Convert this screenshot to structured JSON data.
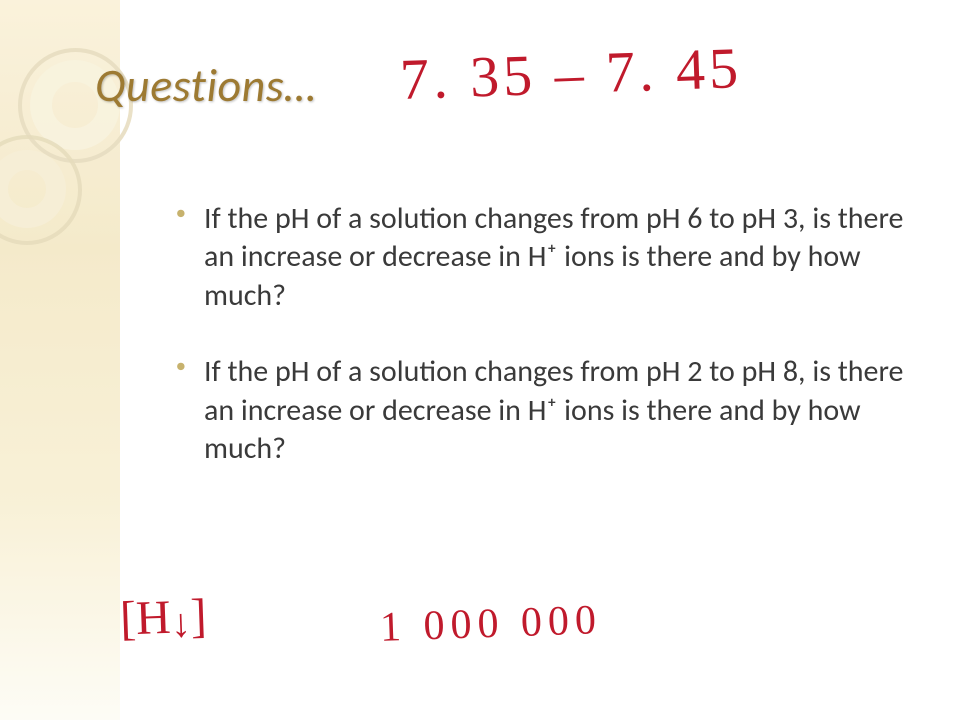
{
  "slide": {
    "title": "Questions…",
    "bullets": [
      "If the pH of a solution changes from pH 6 to pH 3, is there an increase or decrease in H⁺ ions is there and by how much?",
      "If the pH of a solution changes from pH 2 to pH 8, is there an increase or decrease in H⁺ ions is there and by how much?"
    ],
    "accent_color": "#9d7a32",
    "bullet_color": "#c7b26d",
    "text_color": "#3a3a3a",
    "sidebar_gradient": [
      "#faf2da",
      "#f4e9c8",
      "#f8f0d5",
      "#fdfcf5"
    ]
  },
  "annotations": {
    "top_range": "7. 35 – 7. 45",
    "bottom_left": "[H↓]",
    "bottom_right": "1 000 000",
    "ink_color": "#c01a2c"
  }
}
